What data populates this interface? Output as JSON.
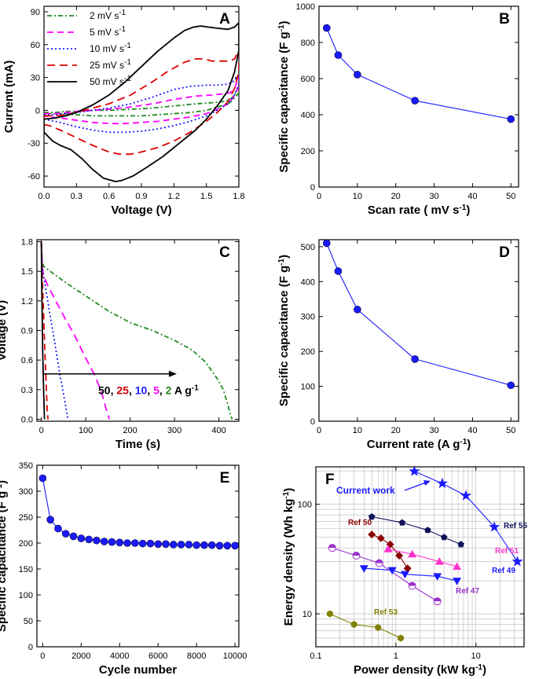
{
  "chart_data": [
    {
      "id": "A",
      "type": "line",
      "panel_label": "A",
      "xlabel": "Voltage (V)",
      "ylabel": "Current (mA)",
      "xlim": [
        0.0,
        1.8
      ],
      "ylim": [
        -70,
        95
      ],
      "xticks": [
        0.0,
        0.3,
        0.6,
        0.9,
        1.2,
        1.5,
        1.8
      ],
      "xtick_labels": [
        "0.0",
        "0.3",
        "0.6",
        "0.9",
        "1.2",
        "1.5",
        "1.8"
      ],
      "yticks": [
        -60,
        -30,
        0,
        30,
        60,
        90
      ],
      "ytick_labels": [
        "-60",
        "-30",
        "0",
        "30",
        "60",
        "90"
      ],
      "legend_position": "top-left",
      "series": [
        {
          "name": "2 mV s",
          "sup": "-1",
          "color": "#228B22",
          "dash": "dashdot",
          "x": [
            0.0,
            0.1,
            0.2,
            0.3,
            0.45,
            0.6,
            0.8,
            1.0,
            1.2,
            1.4,
            1.55,
            1.65,
            1.72,
            1.76,
            1.8,
            1.8,
            1.75,
            1.7,
            1.6,
            1.5,
            1.35,
            1.2,
            1.05,
            0.9,
            0.75,
            0.6,
            0.45,
            0.3,
            0.15,
            0.05,
            0.0,
            0.0
          ],
          "y": [
            -2,
            -2,
            -1,
            -1,
            0,
            0,
            1,
            2,
            4,
            6,
            7,
            8,
            10,
            14,
            22,
            16,
            10,
            6,
            3,
            0,
            -2,
            -3,
            -4,
            -5,
            -5,
            -5,
            -5,
            -4,
            -3,
            -3,
            -3,
            -2
          ]
        },
        {
          "name": "5 mV s",
          "sup": "-1",
          "color": "#FF00FF",
          "dash": "dash",
          "x": [
            0.0,
            0.1,
            0.2,
            0.3,
            0.45,
            0.6,
            0.8,
            1.0,
            1.2,
            1.4,
            1.55,
            1.65,
            1.72,
            1.76,
            1.8,
            1.8,
            1.75,
            1.7,
            1.6,
            1.5,
            1.35,
            1.2,
            1.05,
            0.9,
            0.75,
            0.6,
            0.45,
            0.3,
            0.15,
            0.05,
            0.0,
            0.0
          ],
          "y": [
            -3,
            -3,
            -2,
            -1,
            0,
            1,
            3,
            6,
            10,
            13,
            14,
            15,
            16,
            20,
            30,
            22,
            12,
            6,
            1,
            -3,
            -6,
            -8,
            -10,
            -11,
            -12,
            -12,
            -11,
            -9,
            -7,
            -6,
            -5,
            -3
          ]
        },
        {
          "name": "10 mV s",
          "sup": "-1",
          "color": "#1a1aff",
          "dash": "dot",
          "x": [
            0.0,
            0.1,
            0.2,
            0.3,
            0.45,
            0.6,
            0.8,
            1.0,
            1.2,
            1.35,
            1.5,
            1.6,
            1.7,
            1.76,
            1.8,
            1.8,
            1.76,
            1.7,
            1.6,
            1.5,
            1.35,
            1.2,
            1.05,
            0.9,
            0.75,
            0.6,
            0.45,
            0.3,
            0.15,
            0.05,
            0.0,
            0.0
          ],
          "y": [
            -4,
            -4,
            -3,
            -2,
            0,
            2,
            6,
            12,
            19,
            22,
            23,
            23,
            24,
            27,
            33,
            24,
            14,
            6,
            0,
            -5,
            -10,
            -14,
            -17,
            -19,
            -20,
            -20,
            -18,
            -15,
            -11,
            -9,
            -8,
            -4
          ]
        },
        {
          "name": "25 mV s",
          "sup": "-1",
          "color": "#dd0000",
          "dash": "longdash",
          "x": [
            0.0,
            0.1,
            0.2,
            0.3,
            0.45,
            0.6,
            0.8,
            1.0,
            1.15,
            1.3,
            1.4,
            1.48,
            1.55,
            1.65,
            1.72,
            1.76,
            1.8,
            1.8,
            1.76,
            1.7,
            1.6,
            1.5,
            1.35,
            1.2,
            1.05,
            0.9,
            0.8,
            0.7,
            0.6,
            0.45,
            0.3,
            0.15,
            0.05,
            0.0,
            0.0
          ],
          "y": [
            -5,
            -5,
            -4,
            -2,
            2,
            6,
            14,
            26,
            36,
            44,
            47,
            47,
            45,
            45,
            45,
            47,
            55,
            35,
            20,
            8,
            -2,
            -10,
            -20,
            -28,
            -34,
            -38,
            -40,
            -40,
            -38,
            -32,
            -25,
            -18,
            -14,
            -13,
            -5
          ]
        },
        {
          "name": "50 mV s",
          "sup": "-1",
          "color": "#000000",
          "dash": "solid",
          "x": [
            0.0,
            0.1,
            0.2,
            0.3,
            0.45,
            0.6,
            0.75,
            0.9,
            1.05,
            1.2,
            1.3,
            1.38,
            1.45,
            1.52,
            1.6,
            1.7,
            1.76,
            1.8,
            1.8,
            1.76,
            1.7,
            1.6,
            1.5,
            1.4,
            1.25,
            1.1,
            0.95,
            0.82,
            0.72,
            0.66,
            0.55,
            0.45,
            0.35,
            0.25,
            0.15,
            0.08,
            0.0,
            0.0
          ],
          "y": [
            -8,
            -7,
            -5,
            -2,
            5,
            14,
            26,
            40,
            54,
            66,
            73,
            76,
            77,
            76,
            75,
            74,
            76,
            80,
            55,
            35,
            18,
            4,
            -8,
            -18,
            -30,
            -42,
            -52,
            -60,
            -64,
            -65,
            -62,
            -54,
            -44,
            -36,
            -32,
            -28,
            -20,
            -8
          ]
        }
      ]
    },
    {
      "id": "B",
      "type": "line",
      "panel_label": "B",
      "xlabel": "Scan rate ( mV s",
      "xlabel_sup": "-1",
      "xlabel_end": ")",
      "ylabel": "Specific capacitance (F g",
      "ylabel_sup": "-1",
      "ylabel_end": ")",
      "xlim": [
        0,
        52
      ],
      "ylim": [
        0,
        1000
      ],
      "xticks": [
        0,
        10,
        20,
        30,
        40,
        50
      ],
      "xtick_labels": [
        "0",
        "10",
        "20",
        "30",
        "40",
        "50"
      ],
      "yticks": [
        0,
        200,
        400,
        600,
        800,
        1000
      ],
      "ytick_labels": [
        "0",
        "200",
        "400",
        "600",
        "800",
        "1000"
      ],
      "series": [
        {
          "color": "#1a1aff",
          "marker": "circle",
          "x": [
            2,
            5,
            10,
            25,
            50
          ],
          "y": [
            880,
            730,
            622,
            478,
            376
          ]
        }
      ]
    },
    {
      "id": "C",
      "type": "line",
      "panel_label": "C",
      "xlabel": "Time (s)",
      "ylabel": "Voltage (V)",
      "xlim": [
        -10,
        445
      ],
      "ylim": [
        -0.02,
        1.82
      ],
      "xticks": [
        0,
        100,
        200,
        300,
        400
      ],
      "xtick_labels": [
        "0",
        "100",
        "200",
        "300",
        "400"
      ],
      "yticks": [
        0.0,
        0.3,
        0.6,
        0.9,
        1.2,
        1.5,
        1.8
      ],
      "ytick_labels": [
        "0.0",
        "0.3",
        "0.6",
        "0.9",
        "1.2",
        "1.5",
        "1.8"
      ],
      "annotation": {
        "parts": [
          {
            "text": "50",
            "color": "#000000"
          },
          {
            "text": ", ",
            "color": "#000000"
          },
          {
            "text": "25",
            "color": "#cc0000"
          },
          {
            "text": ", ",
            "color": "#000000"
          },
          {
            "text": "10",
            "color": "#1a1aff"
          },
          {
            "text": ", ",
            "color": "#000000"
          },
          {
            "text": "5",
            "color": "#ff00ff"
          },
          {
            "text": ", ",
            "color": "#000000"
          },
          {
            "text": "2",
            "color": "#228B22"
          },
          {
            "text": " A g",
            "color": "#000000"
          }
        ],
        "sup": "-1",
        "arrow_x": [
          5,
          305
        ],
        "arrow_y": 0.46
      },
      "series": [
        {
          "label": "2 A g-1",
          "color": "#228B22",
          "dash": "dashdot",
          "x": [
            0,
            2,
            5,
            20,
            50,
            100,
            150,
            200,
            250,
            300,
            340,
            370,
            395,
            410,
            420,
            425,
            430
          ],
          "y": [
            1.8,
            1.6,
            1.55,
            1.5,
            1.4,
            1.25,
            1.1,
            0.98,
            0.9,
            0.8,
            0.7,
            0.58,
            0.42,
            0.3,
            0.15,
            0.06,
            0.0
          ]
        },
        {
          "label": "5 A g-1",
          "color": "#ff00ff",
          "dash": "longdash",
          "x": [
            0,
            2,
            5,
            15,
            30,
            50,
            75,
            100,
            120,
            135,
            145,
            153
          ],
          "y": [
            1.8,
            1.55,
            1.45,
            1.35,
            1.22,
            1.05,
            0.85,
            0.62,
            0.45,
            0.28,
            0.12,
            0.0
          ]
        },
        {
          "label": "10 A g-1",
          "color": "#1a1aff",
          "dash": "dot",
          "x": [
            0,
            2,
            5,
            10,
            20,
            30,
            40,
            50,
            56,
            60
          ],
          "y": [
            1.8,
            1.55,
            1.45,
            1.32,
            1.05,
            0.78,
            0.5,
            0.25,
            0.1,
            0.0
          ]
        },
        {
          "label": "25 A g-1",
          "color": "#dd0000",
          "dash": "dash",
          "x": [
            0,
            1,
            2,
            4,
            7,
            10,
            13,
            15
          ],
          "y": [
            1.8,
            1.6,
            1.45,
            1.2,
            0.8,
            0.45,
            0.1,
            0.0
          ]
        },
        {
          "label": "50 A g-1",
          "color": "#000000",
          "dash": "solid",
          "x": [
            0,
            1,
            2,
            3,
            5,
            7
          ],
          "y": [
            1.8,
            1.3,
            1.0,
            0.7,
            0.3,
            0.0
          ]
        }
      ]
    },
    {
      "id": "D",
      "type": "line",
      "panel_label": "D",
      "xlabel": "Current rate (A g",
      "xlabel_sup": "-1",
      "xlabel_end": ")",
      "ylabel": "Specific capacitance (F g",
      "ylabel_sup": "-1",
      "ylabel_end": ")",
      "xlim": [
        0,
        52
      ],
      "ylim": [
        0,
        520
      ],
      "xticks": [
        0,
        10,
        20,
        30,
        40,
        50
      ],
      "xtick_labels": [
        "0",
        "10",
        "20",
        "30",
        "40",
        "50"
      ],
      "yticks": [
        0,
        100,
        200,
        300,
        400,
        500
      ],
      "ytick_labels": [
        "0",
        "100",
        "200",
        "300",
        "400",
        "500"
      ],
      "series": [
        {
          "color": "#1a1aff",
          "marker": "circle",
          "x": [
            2,
            5,
            10,
            25,
            50
          ],
          "y": [
            510,
            430,
            320,
            178,
            103
          ]
        }
      ]
    },
    {
      "id": "E",
      "type": "line",
      "panel_label": "E",
      "xlabel": "Cycle number",
      "ylabel": "Specific capacitance (F g",
      "ylabel_sup": "-1",
      "ylabel_end": ")",
      "xlim": [
        -300,
        10200
      ],
      "ylim": [
        0,
        350
      ],
      "xticks": [
        0,
        2000,
        4000,
        6000,
        8000,
        10000
      ],
      "xtick_labels": [
        "0",
        "2000",
        "4000",
        "6000",
        "8000",
        "10000"
      ],
      "yticks": [
        0,
        50,
        100,
        150,
        200,
        250,
        300,
        350
      ],
      "ytick_labels": [
        "0",
        "50",
        "100",
        "150",
        "200",
        "250",
        "300",
        "350"
      ],
      "series": [
        {
          "color": "#1a1aff",
          "marker": "circle",
          "x": [
            0,
            400,
            800,
            1200,
            1600,
            2000,
            2400,
            2800,
            3200,
            3600,
            4000,
            4400,
            4800,
            5200,
            5600,
            6000,
            6400,
            6800,
            7200,
            7600,
            8000,
            8400,
            8800,
            9200,
            9600,
            10000
          ],
          "y": [
            325,
            245,
            228,
            218,
            213,
            209,
            207,
            205,
            203,
            202,
            201,
            200,
            200,
            199,
            199,
            198,
            198,
            197,
            197,
            197,
            196,
            196,
            196,
            195,
            195,
            195
          ]
        }
      ]
    },
    {
      "id": "F",
      "type": "scatter",
      "panel_label": "F",
      "xlabel": "Power density (kW kg",
      "xlabel_sup": "-1",
      "xlabel_end": ")",
      "ylabel": "Energy density (Wh kg",
      "ylabel_sup": "-1",
      "ylabel_end": ")",
      "xscale": "log",
      "yscale": "log",
      "xlim": [
        0.1,
        40
      ],
      "ylim": [
        5,
        220
      ],
      "xticks": [
        0.1,
        1,
        10
      ],
      "xtick_labels": [
        "0.1",
        "1",
        "10"
      ],
      "yticks": [
        10,
        100
      ],
      "ytick_labels": [
        "10",
        "100"
      ],
      "grid": true,
      "series": [
        {
          "name": "Current work",
          "label_color": "#1a1aff",
          "color": "#1a1aff",
          "marker": "star",
          "x": [
            1.7,
            3.8,
            7.5,
            17,
            33
          ],
          "y": [
            200,
            155,
            120,
            62,
            30
          ]
        },
        {
          "name": "Ref 55",
          "label_color": "#10105a",
          "color": "#10105a",
          "marker": "pentagon",
          "x": [
            0.5,
            1.2,
            2.5,
            4,
            6.5
          ],
          "y": [
            77,
            68,
            58,
            50,
            43
          ]
        },
        {
          "name": "Ref 50",
          "label_color": "#8b0000",
          "color": "#8b0000",
          "marker": "diamond",
          "x": [
            0.5,
            0.65,
            0.85,
            1.1,
            1.4
          ],
          "y": [
            53,
            49,
            43,
            34,
            26
          ]
        },
        {
          "name": "Ref 51",
          "label_color": "#ff33cc",
          "color": "#ff33cc",
          "marker": "triangle-up",
          "x": [
            0.8,
            1.6,
            3.5,
            5.8
          ],
          "y": [
            39,
            35,
            30,
            27
          ]
        },
        {
          "name": "Ref 49",
          "label_color": "#1a1aff",
          "color": "#1a1aff",
          "marker": "triangle-down",
          "x": [
            0.4,
            0.9,
            1.3,
            3.3,
            5.8
          ],
          "y": [
            26,
            25,
            23,
            22,
            20
          ]
        },
        {
          "name": "Ref 47",
          "label_color": "#9933cc",
          "color": "#9933cc",
          "marker": "half-circle",
          "x": [
            0.16,
            0.32,
            0.62,
            1.6,
            3.3
          ],
          "y": [
            40,
            34,
            29,
            18,
            13
          ]
        },
        {
          "name": "Ref 53",
          "label_color": "#808000",
          "color": "#808000",
          "marker": "hexagon",
          "x": [
            0.15,
            0.3,
            0.6,
            1.15
          ],
          "y": [
            10,
            8,
            7.5,
            6
          ]
        }
      ]
    }
  ]
}
